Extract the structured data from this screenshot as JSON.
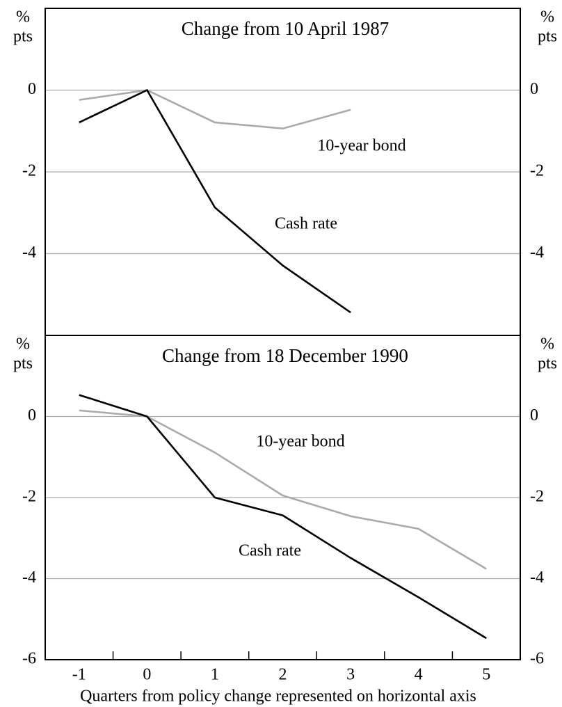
{
  "chart_data": [
    {
      "type": "line",
      "title": "Change from 10 April 1987",
      "y_unit": [
        "%",
        "pts"
      ],
      "ylim": [
        -6,
        2
      ],
      "yticks": [
        -4,
        -2,
        0
      ],
      "grid": true,
      "series": [
        {
          "name": "10-year bond",
          "color": "#aaaaaa",
          "values": [
            -0.24,
            0,
            -0.79,
            -0.94,
            -0.48
          ]
        },
        {
          "name": "Cash rate",
          "color": "#000000",
          "values": [
            -0.79,
            0,
            -2.87,
            -4.29,
            -5.44
          ]
        }
      ]
    },
    {
      "type": "line",
      "title": "Change from 18 December 1990",
      "y_unit": [
        "%",
        "pts"
      ],
      "x_label": "Quarters from policy change represented on horizontal axis",
      "categories": [
        "-1",
        "0",
        "1",
        "2",
        "3",
        "4",
        "5"
      ],
      "ylim": [
        -6,
        2
      ],
      "yticks": [
        -6,
        -4,
        -2,
        0
      ],
      "grid": true,
      "series": [
        {
          "name": "10-year bond",
          "color": "#aaaaaa",
          "values": [
            0.15,
            0,
            -0.89,
            -1.95,
            -2.46,
            -2.77,
            -3.76
          ]
        },
        {
          "name": "Cash rate",
          "color": "#000000",
          "values": [
            0.53,
            0,
            -2.0,
            -2.44,
            -3.49,
            -4.46,
            -5.47
          ]
        }
      ]
    }
  ]
}
